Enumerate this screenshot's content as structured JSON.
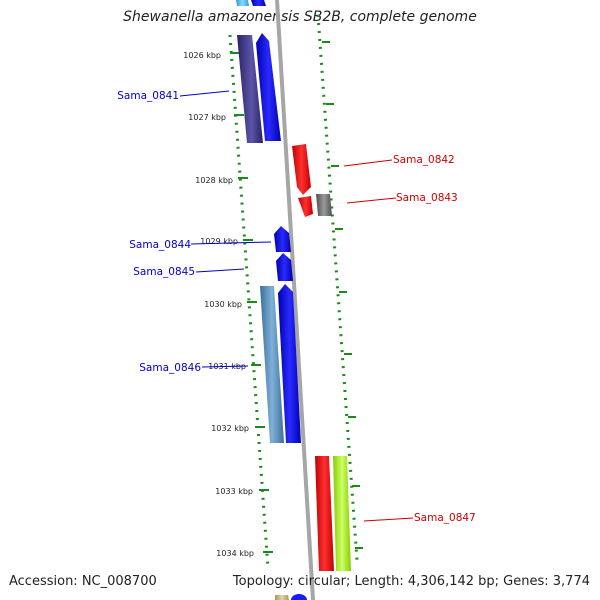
{
  "title": "Shewanella amazonensis SB2B, complete genome",
  "accession": "Accession: NC_008700",
  "summary": "Topology: circular; Length: 4,306,142 bp; Genes: 3,774",
  "ticks": [
    "1026 kbp",
    "1027 kbp",
    "1028 kbp",
    "1029 kbp",
    "1030 kbp",
    "1031 kbp",
    "1032 kbp",
    "1033 kbp",
    "1034 kbp"
  ],
  "gene_labels": [
    {
      "name": "Sama_0841",
      "color": "#0000cc"
    },
    {
      "name": "Sama_0842",
      "color": "#cc0000"
    },
    {
      "name": "Sama_0843",
      "color": "#cc0000"
    },
    {
      "name": "Sama_0844",
      "color": "#0000cc"
    },
    {
      "name": "Sama_0845",
      "color": "#0000cc"
    },
    {
      "name": "Sama_0846",
      "color": "#0000cc"
    },
    {
      "name": "Sama_0847",
      "color": "#cc0000"
    }
  ]
}
